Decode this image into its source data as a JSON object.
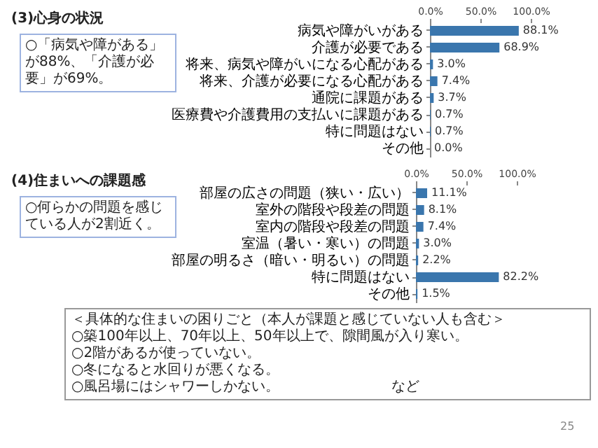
{
  "chart_data": [
    {
      "type": "bar",
      "orientation": "horizontal",
      "title": "(3)心身の状況",
      "annotations": [
        "○「病気や障がある」が88%、「介護が必要」が69%。"
      ],
      "categories": [
        "病気や障がいがある",
        "介護が必要である",
        "将来、病気や障がいになる心配がある",
        "将来、介護が必要になる心配がある",
        "通院に課題がある",
        "医療費や介護費用の支払いに課題がある",
        "特に問題はない",
        "その他"
      ],
      "values": [
        88.1,
        68.9,
        3.0,
        7.4,
        3.7,
        0.7,
        0.7,
        0.0
      ],
      "value_labels": [
        "88.1%",
        "68.9%",
        "3.0%",
        "7.4%",
        "3.7%",
        "0.7%",
        "0.7%",
        "0.0%"
      ],
      "color": "#3a76ad",
      "xlim": [
        0,
        100
      ],
      "xticks": [
        {
          "value": 0,
          "label": "0.0%"
        },
        {
          "value": 50,
          "label": "50.0%"
        },
        {
          "value": 100,
          "label": "100.0%"
        }
      ]
    },
    {
      "type": "bar",
      "orientation": "horizontal",
      "title": "(4)住まいへの課題感",
      "annotations": [
        "○何らかの問題を感じている人が2割近く。",
        "＜具体的な住まいの困りごと（本人が課題と感じていない人も含む＞",
        "○築100年以上、70年以上、50年以上で、隙間風が入り寒い。",
        "○2階があるが使っていない。",
        "○冬になると水回りが悪くなる。",
        "○風呂場にはシャワーしかない。",
        "など",
        "25"
      ],
      "categories": [
        "部屋の広さの問題（狭い・広い）",
        "室外の階段や段差の問題",
        "室内の階段や段差の問題",
        "室温（暑い・寒い）の問題",
        "部屋の明るさ（暗い・明るい）の問題",
        "特に問題はない",
        "その他"
      ],
      "values": [
        11.1,
        8.1,
        7.4,
        3.0,
        2.2,
        82.2,
        1.5
      ],
      "value_labels": [
        "11.1%",
        "8.1%",
        "7.4%",
        "3.0%",
        "2.2%",
        "82.2%",
        "1.5%"
      ],
      "color": "#3a76ad",
      "xlim": [
        0,
        100
      ],
      "xticks": [
        {
          "value": 0,
          "label": "0.0%"
        },
        {
          "value": 50,
          "label": "50.0%"
        },
        {
          "value": 100,
          "label": "100.0%"
        }
      ]
    }
  ]
}
